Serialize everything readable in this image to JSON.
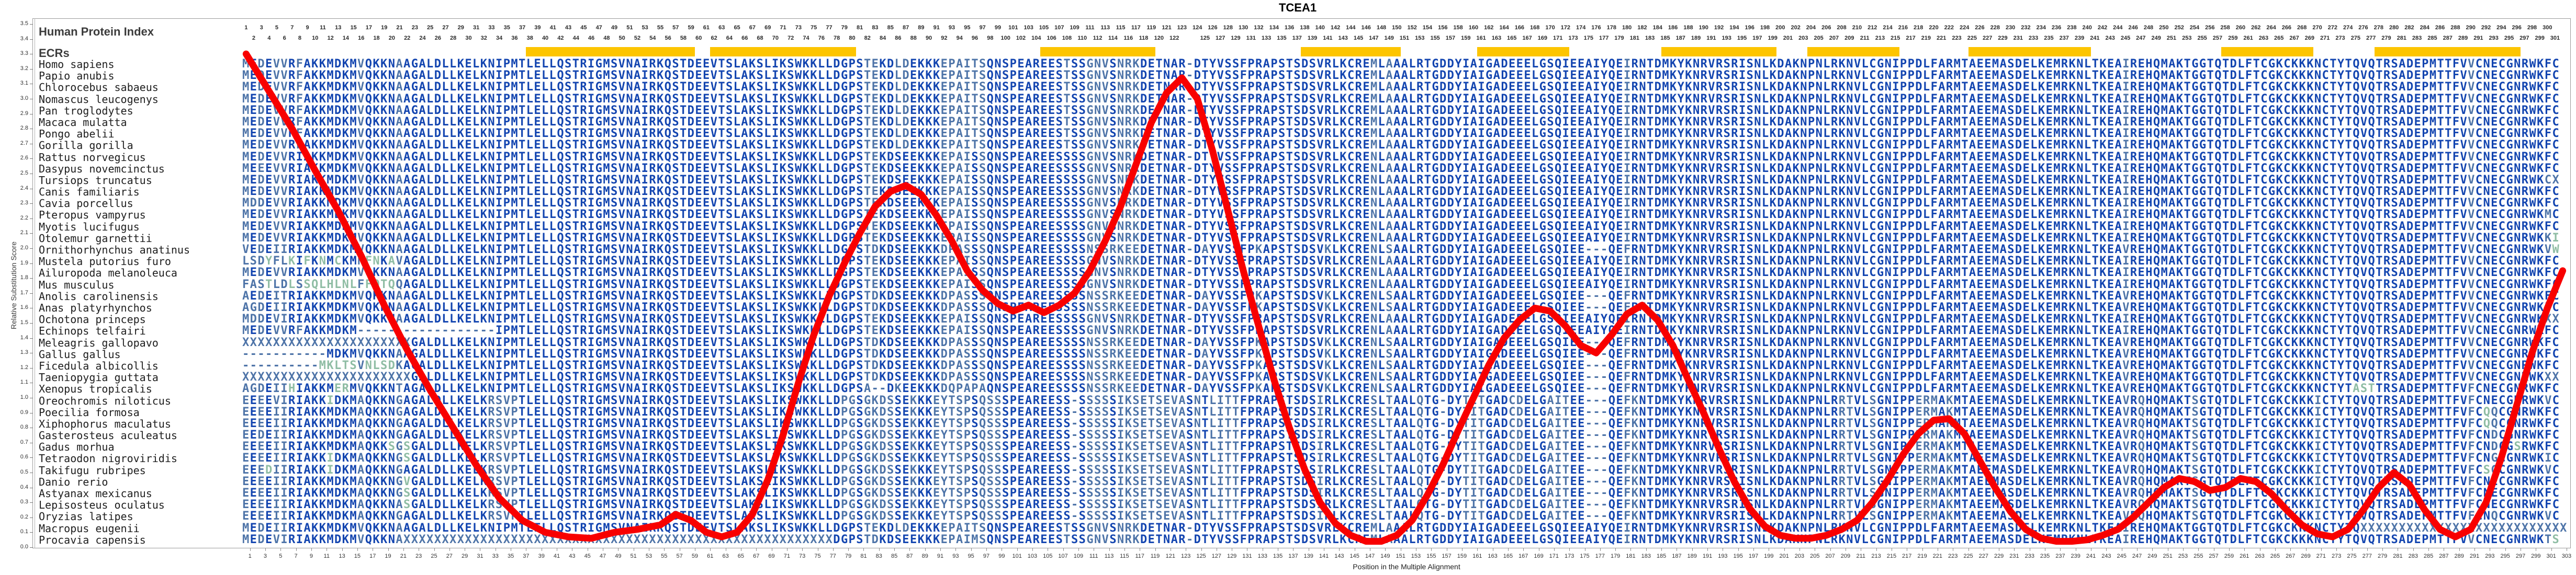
{
  "title": "TCEA1",
  "tracks": {
    "human_protein_index_label": "Human Protein Index",
    "ecrs_label": "ECRs"
  },
  "axes": {
    "x_label": "Position in the Multiple Alignment",
    "y_label": "Relative Substitution Score",
    "y_min": 0.0,
    "y_max": 3.5,
    "y_step": 0.1,
    "x_min": 1,
    "x_max": 303,
    "human_index_max": 301,
    "human_index_gap_column": 124
  },
  "colors": {
    "conserved_letter": "#1345b0",
    "variable_letter": "#4e74a8",
    "divergent_letter": "#8fbda4",
    "ecr_bar": "#fdc500",
    "curve": "#f80000",
    "frame": "#9a9a9a",
    "label_text": "#1e1e1e"
  },
  "ecrs": {
    "color": "#fdc500",
    "bars": [
      [
        38,
        59
      ],
      [
        62,
        80
      ],
      [
        105,
        119
      ],
      [
        139,
        151
      ],
      [
        162,
        173
      ],
      [
        186,
        200
      ],
      [
        205,
        216
      ],
      [
        226,
        241
      ],
      [
        259,
        270
      ],
      [
        279,
        297
      ]
    ]
  },
  "alignment": {
    "consensus": "MEDEVVRFAKKMDKMVQKKNAAGALDLLKELKNIPMTLELLQSTRIGMSVNAIRKQSTDEEVTSLAKSLIKSWKKLLDGPSTEKDLDEKKKEPAITSQNSPEAREESTSSGNVSNRKDETNAR-DTYVSSFPRAPSTSDSVRLKCREMLAAALRTGDDYIAIGADEEELGSQIEEAIYQEIRNTDMKYKNRVRSRISNLKDAKNPNLRKNVLCGNIPPDLFARMTAEEMASDELKEMRKNLTKEAIREHQMAKTGGTQTDLFTCGKCKKKNCTYTQVQTRSADEPMTTFVVCNECGNRWKFC",
    "group_overlays": {
      "mam": [
        [
          85,
          "SEE"
        ],
        [
          95,
          "SS"
        ],
        [
          107,
          "SS"
        ],
        [
          147,
          "N"
        ]
      ],
      "bird": [
        [
          80,
          "STDKDSEEKKKDPASS"
        ],
        [
          107,
          "SSSNSSRKEE"
        ],
        [
          125,
          "A"
        ],
        [
          132,
          "K"
        ],
        [
          141,
          "K"
        ],
        [
          147,
          "N"
        ],
        [
          149,
          "S"
        ],
        [
          175,
          "---"
        ],
        [
          180,
          "F"
        ],
        [
          245,
          "VR"
        ]
      ],
      "fish": [
        [
          30,
          "LKRSVP"
        ],
        [
          76,
          "LDPGSGKDSSEKKKEYTSPSQSS"
        ],
        [
          107,
          "S-SSSSSIKSETSEVASNTLITT"
        ],
        [
          140,
          "I"
        ],
        [
          147,
          "S"
        ],
        [
          149,
          "T"
        ],
        [
          153,
          "Q"
        ],
        [
          156,
          "-"
        ],
        [
          159,
          "TIT"
        ],
        [
          165,
          "CD"
        ],
        [
          170,
          "AIT"
        ],
        [
          175,
          "---"
        ],
        [
          180,
          "FK"
        ],
        [
          208,
          "RT"
        ],
        [
          212,
          "S"
        ],
        [
          218,
          "ER"
        ],
        [
          220,
          "MAK"
        ],
        [
          245,
          "VRQ"
        ],
        [
          254,
          "S"
        ],
        [
          270,
          "I"
        ]
      ]
    },
    "species": [
      {
        "name": "Homo sapiens",
        "group": "",
        "ov": []
      },
      {
        "name": "Papio anubis",
        "group": "",
        "ov": []
      },
      {
        "name": "Chlorocebus sabaeus",
        "group": "",
        "ov": []
      },
      {
        "name": "Nomascus leucogenys",
        "group": "",
        "ov": []
      },
      {
        "name": "Pan troglodytes",
        "group": "",
        "ov": []
      },
      {
        "name": "Macaca mulatta",
        "group": "",
        "ov": []
      },
      {
        "name": "Pongo abelii",
        "group": "",
        "ov": []
      },
      {
        "name": "Gorilla gorilla",
        "group": "",
        "ov": []
      },
      {
        "name": "Rattus norvegicus",
        "group": "mam",
        "ov": [
          [
            7,
            "I"
          ]
        ]
      },
      {
        "name": "Dasypus novemcinctus",
        "group": "mam",
        "ov": [
          [
            2,
            "E"
          ],
          [
            7,
            "I"
          ]
        ]
      },
      {
        "name": "Tursiops truncatus",
        "group": "mam",
        "ov": [
          [
            7,
            "I"
          ],
          [
            300,
            "CX"
          ]
        ]
      },
      {
        "name": "Canis familiaris",
        "group": "mam",
        "ov": [
          [
            7,
            "I"
          ]
        ]
      },
      {
        "name": "Cavia porcellus",
        "group": "mam",
        "ov": [
          [
            1,
            "D"
          ],
          [
            7,
            "I"
          ]
        ]
      },
      {
        "name": "Pteropus vampyrus",
        "group": "mam",
        "ov": [
          [
            7,
            "I"
          ],
          [
            300,
            "MC"
          ]
        ]
      },
      {
        "name": "Myotis lucifugus",
        "group": "mam",
        "ov": [
          [
            7,
            "I"
          ]
        ]
      },
      {
        "name": "Otolemur garnettii",
        "group": "mam",
        "ov": [
          [
            7,
            "I"
          ],
          [
            300,
            "KI"
          ]
        ]
      },
      {
        "name": "Ornithorhynchus anatinus",
        "group": "bird",
        "ov": [
          [
            0,
            "VEDEIIRIAK"
          ],
          [
            300,
            "VW"
          ]
        ]
      },
      {
        "name": "Mustela putorius furo",
        "group": "mam",
        "ov": [
          [
            0,
            "LSDYFLKIFKNMCKMNFNKAVA"
          ]
        ]
      },
      {
        "name": "Ailuropoda melanoleuca",
        "group": "mam",
        "ov": [
          [
            7,
            "I"
          ]
        ]
      },
      {
        "name": "Mus musculus",
        "group": "mam",
        "ov": [
          [
            0,
            "FASTLDLSSQLHLNLFFQTQQA"
          ]
        ]
      },
      {
        "name": "Anolis carolinensis",
        "group": "bird",
        "ov": [
          [
            0,
            "AEDEITRIAK"
          ]
        ]
      },
      {
        "name": "Anas platyrhynchos",
        "group": "bird",
        "ov": [
          [
            0,
            "AGDEIIRIAK"
          ]
        ]
      },
      {
        "name": "Ochotona princeps",
        "group": "mam",
        "ov": [
          [
            0,
            "MDDEVIRIAK"
          ],
          [
            300,
            "XX"
          ]
        ]
      },
      {
        "name": "Echinops telfairi",
        "group": "mam",
        "ov": [
          [
            15,
            "------------------"
          ]
        ]
      },
      {
        "name": "Meleagris gallopavo",
        "group": "bird",
        "ov": [
          [
            0,
            "XXXXXXXXXXXXXXXXXXXXXX"
          ]
        ]
      },
      {
        "name": "Gallus gallus",
        "group": "bird",
        "ov": [
          [
            0,
            "-----------MDKMVQKKNAA"
          ]
        ]
      },
      {
        "name": "Ficedula albicollis",
        "group": "bird",
        "ov": [
          [
            0,
            "----------MKLTSVNLSDKA"
          ]
        ]
      },
      {
        "name": "Taeniopygia guttata",
        "group": "bird",
        "ov": [
          [
            0,
            "XXXXXXXXXXXXXXXXXXXXXX"
          ],
          [
            300,
            "XX"
          ]
        ]
      },
      {
        "name": "Xenopus tropicalis",
        "group": "bird",
        "ov": [
          [
            0,
            "AGDEIIHIAKKMERMVQKKNTA"
          ],
          [
            76,
            "LDGPSA--DKEEKKKDQPAPAQ"
          ],
          [
            275,
            "AST"
          ],
          [
            290,
            "F"
          ]
        ]
      },
      {
        "name": "Oreochromis niloticus",
        "group": "fish",
        "ov": [
          [
            0,
            "EEEEVIRIAKKIDKMAQKKNGA"
          ],
          [
            290,
            "FCNECGNRWKVC"
          ]
        ]
      },
      {
        "name": "Poecilia formosa",
        "group": "fish",
        "ov": [
          [
            0,
            "EEEEIIRIAKKMDKMAQKKNGA"
          ],
          [
            290,
            "FCQQCGNRWKFC"
          ]
        ]
      },
      {
        "name": "Xiphophorus maculatus",
        "group": "fish",
        "ov": [
          [
            0,
            "EEEEIIRIAKKMDKMAQKKNGA"
          ],
          [
            290,
            "FCQQCGNRWKFC"
          ]
        ]
      },
      {
        "name": "Gasterosteus aculeatus",
        "group": "fish",
        "ov": [
          [
            0,
            "EEDEIIRIAKKMDKMAQKKNGA"
          ],
          [
            290,
            "FCNDCGNRWKFC"
          ]
        ]
      },
      {
        "name": "Gadus morhua",
        "group": "fish",
        "ov": [
          [
            0,
            "EEEEIIRIAKKMDKMAQKKSGS"
          ],
          [
            290,
            "FCNDCGSRWKFC"
          ]
        ]
      },
      {
        "name": "Tetraodon nigroviridis",
        "group": "fish",
        "ov": [
          [
            0,
            "EEEEIIRIAKKIDKMAQKKNGS"
          ],
          [
            290,
            "FCNGCGNRWKIC"
          ]
        ]
      },
      {
        "name": "Takifugu rubripes",
        "group": "fish",
        "ov": [
          [
            0,
            "EEEDIIRIAKKIDKMAQKKNGA"
          ],
          [
            290,
            "FCSGCGNRWKVC"
          ]
        ]
      },
      {
        "name": "Danio rerio",
        "group": "fish",
        "ov": [
          [
            0,
            "EEEEIIRIAKKMDKMAQKKNGV"
          ],
          [
            290,
            "FCNECGNRWKFC"
          ]
        ]
      },
      {
        "name": "Astyanax mexicanus",
        "group": "fish",
        "ov": [
          [
            0,
            "EEEEIIRIAKKMDKMAQKKNGS"
          ],
          [
            290,
            "FCNECGNRWKFC"
          ]
        ]
      },
      {
        "name": "Lepisosteus oculatus",
        "group": "fish",
        "ov": [
          [
            0,
            "EEEEIIRIAKKMDKMAQKKNAS"
          ],
          [
            290,
            "FCNECGNRWKFC"
          ]
        ]
      },
      {
        "name": "Oryzias latipes",
        "group": "fish",
        "ov": [
          [
            0,
            "EEEEIIRIAKKMDKMAQKKNGA"
          ],
          [
            290,
            "FCNQCGNRWKVC"
          ]
        ]
      },
      {
        "name": "Macropus eugenii",
        "group": "",
        "ov": [
          [
            0,
            "MEDEIIRIAK"
          ],
          [
            276,
            "XXXXXXXXXXXXXXXXXXXXXXXXXXX"
          ]
        ]
      },
      {
        "name": "Procavia capensis",
        "group": "",
        "ov": [
          [
            0,
            "MEDEVIRIAKKMDKMVQKKNAXXXXXXXXXXXXXXXXXXXXXXXXXXXXXXXXXXXXXXXXXXXXXXXXXXXXXXXX"
          ],
          [
            78,
            "GPSTDKDSEEKKKEPAIMSQNS"
          ],
          [
            300,
            "TS"
          ]
        ]
      }
    ]
  },
  "chart_data": {
    "type": "line",
    "title": "TCEA1",
    "xlabel": "Position in the Multiple Alignment",
    "ylabel": "Relative Substitution Score",
    "xlim": [
      1,
      303
    ],
    "ylim": [
      0,
      3.5
    ],
    "grid": false,
    "line_color": "#f80000",
    "line_width": 13,
    "x": [
      1,
      4,
      7,
      10,
      13,
      16,
      19,
      22,
      25,
      28,
      31,
      34,
      37,
      40,
      43,
      46,
      49,
      52,
      55,
      57,
      59,
      61,
      63,
      65,
      67,
      69,
      71,
      73,
      75,
      77,
      79,
      81,
      83,
      85,
      87,
      89,
      91,
      93,
      95,
      97,
      99,
      101,
      103,
      105,
      107,
      109,
      111,
      113,
      115,
      117,
      119,
      121,
      123,
      125,
      127,
      129,
      131,
      133,
      135,
      137,
      139,
      141,
      143,
      145,
      147,
      149,
      151,
      153,
      155,
      157,
      159,
      161,
      163,
      165,
      167,
      169,
      171,
      173,
      175,
      177,
      179,
      181,
      183,
      185,
      187,
      189,
      191,
      193,
      195,
      197,
      199,
      201,
      203,
      205,
      207,
      209,
      211,
      213,
      215,
      217,
      219,
      221,
      223,
      225,
      227,
      229,
      231,
      233,
      235,
      237,
      239,
      241,
      243,
      245,
      247,
      249,
      251,
      253,
      255,
      257,
      259,
      261,
      263,
      265,
      267,
      269,
      271,
      273,
      275,
      277,
      279,
      281,
      283,
      285,
      287,
      289,
      291,
      293,
      295,
      297,
      299,
      301,
      303
    ],
    "y": [
      3.3,
      3.05,
      2.8,
      2.52,
      2.25,
      1.95,
      1.62,
      1.32,
      1.05,
      0.8,
      0.55,
      0.33,
      0.18,
      0.1,
      0.07,
      0.06,
      0.1,
      0.12,
      0.15,
      0.22,
      0.18,
      0.1,
      0.07,
      0.1,
      0.22,
      0.45,
      0.75,
      1.1,
      1.42,
      1.68,
      1.9,
      2.1,
      2.28,
      2.38,
      2.42,
      2.36,
      2.22,
      2.05,
      1.85,
      1.72,
      1.63,
      1.58,
      1.62,
      1.57,
      1.62,
      1.7,
      1.85,
      2.05,
      2.28,
      2.56,
      2.84,
      3.04,
      3.14,
      3.0,
      2.65,
      2.25,
      1.85,
      1.48,
      1.12,
      0.8,
      0.52,
      0.3,
      0.16,
      0.08,
      0.04,
      0.04,
      0.08,
      0.18,
      0.35,
      0.55,
      0.78,
      1.0,
      1.22,
      1.4,
      1.52,
      1.6,
      1.58,
      1.48,
      1.35,
      1.3,
      1.42,
      1.56,
      1.62,
      1.52,
      1.35,
      1.12,
      0.9,
      0.66,
      0.44,
      0.26,
      0.14,
      0.08,
      0.06,
      0.06,
      0.08,
      0.12,
      0.18,
      0.3,
      0.45,
      0.62,
      0.76,
      0.85,
      0.86,
      0.76,
      0.58,
      0.4,
      0.24,
      0.12,
      0.06,
      0.04,
      0.04,
      0.05,
      0.08,
      0.12,
      0.2,
      0.3,
      0.4,
      0.46,
      0.44,
      0.38,
      0.4,
      0.46,
      0.44,
      0.36,
      0.25,
      0.15,
      0.09,
      0.07,
      0.12,
      0.25,
      0.4,
      0.5,
      0.42,
      0.25,
      0.12,
      0.07,
      0.12,
      0.3,
      0.6,
      0.95,
      1.3,
      1.6,
      1.85
    ]
  }
}
